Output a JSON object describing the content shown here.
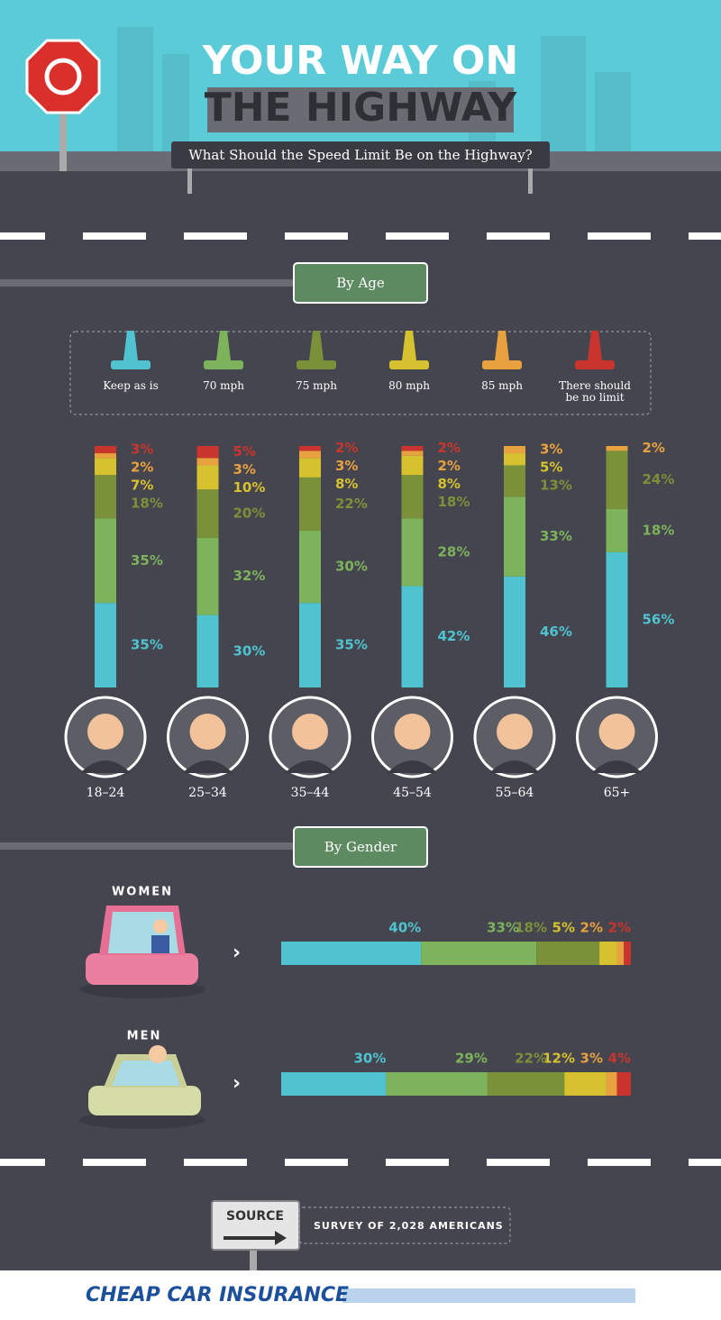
{
  "header": {
    "title_line1": "YOUR WAY ON",
    "title_line2": "THE HIGHWAY",
    "subtitle": "What Should the Speed Limit Be on the Highway?"
  },
  "chart_data": [
    {
      "type": "stacked_bar",
      "title": "By Age",
      "categories": [
        "18–24",
        "25–34",
        "35–44",
        "45–54",
        "55–64",
        "65+"
      ],
      "ylim": [
        0,
        100
      ],
      "series": [
        {
          "name": "Keep as is",
          "color": "#4fc4d0",
          "values": [
            35,
            30,
            35,
            42,
            46,
            56
          ],
          "value_labels": [
            "35%",
            "30%",
            "35%",
            "42%",
            "46%",
            "56%"
          ]
        },
        {
          "name": "70 mph",
          "color": "#7db35b",
          "values": [
            35,
            32,
            30,
            28,
            33,
            18
          ],
          "value_labels": [
            "35%",
            "32%",
            "30%",
            "28%",
            "33%",
            "18%"
          ]
        },
        {
          "name": "75 mph",
          "color": "#7b9139",
          "values": [
            18,
            20,
            22,
            18,
            13,
            24
          ],
          "value_labels": [
            "18%",
            "20%",
            "22%",
            "18%",
            "13%",
            "24%"
          ]
        },
        {
          "name": "80 mph",
          "color": "#d6c22f",
          "values": [
            7,
            10,
            8,
            8,
            5,
            null
          ],
          "value_labels": [
            "7%",
            "10%",
            "8%",
            "8%",
            "5%",
            null
          ]
        },
        {
          "name": "85 mph",
          "color": "#e8a13f",
          "values": [
            2,
            3,
            3,
            2,
            3,
            2
          ],
          "value_labels": [
            "2%",
            "3%",
            "3%",
            "2%",
            "3%",
            "2%"
          ]
        },
        {
          "name": "There should be no limit",
          "color": "#c9352d",
          "values": [
            3,
            5,
            2,
            2,
            null,
            null
          ],
          "value_labels": [
            "3%",
            "5%",
            "2%",
            "2%",
            null,
            null
          ]
        }
      ]
    },
    {
      "type": "stacked_hbar",
      "title": "By Gender",
      "categories": [
        "WOMEN",
        "MEN"
      ],
      "xlim": [
        0,
        100
      ],
      "series": [
        {
          "color": "#4fc4d0",
          "values": [
            40,
            30
          ],
          "value_labels": [
            "40%",
            "30%"
          ]
        },
        {
          "color": "#7db35b",
          "values": [
            33,
            29
          ],
          "value_labels": [
            "33%",
            "29%"
          ]
        },
        {
          "color": "#7b9139",
          "values": [
            18,
            22
          ],
          "value_labels": [
            "18%",
            "22%"
          ]
        },
        {
          "color": "#d6c22f",
          "values": [
            5,
            12
          ],
          "value_labels": [
            "5%",
            "12%"
          ]
        },
        {
          "color": "#e8a13f",
          "values": [
            2,
            3
          ],
          "value_labels": [
            "2%",
            "3%"
          ]
        },
        {
          "color": "#c9352d",
          "values": [
            2,
            4
          ],
          "value_labels": [
            "2%",
            "4%"
          ]
        }
      ]
    }
  ],
  "source": {
    "label": "SOURCE",
    "text": "SURVEY OF 2,028 AMERICANS"
  },
  "brand": "CHEAP CAR INSURANCE"
}
